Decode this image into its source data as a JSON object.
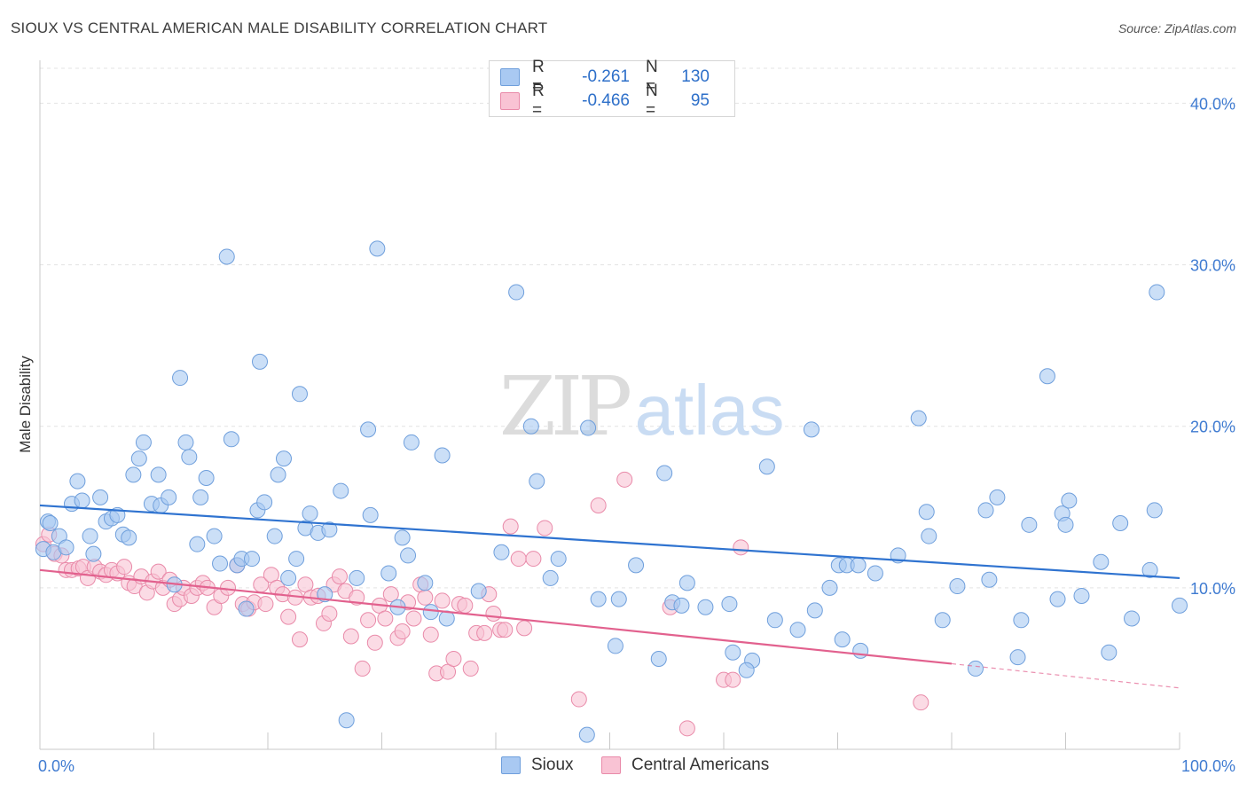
{
  "header": {
    "title": "SIOUX VS CENTRAL AMERICAN MALE DISABILITY CORRELATION CHART",
    "source": "Source: ZipAtlas.com"
  },
  "watermark": {
    "zip": "ZIP",
    "atlas": "atlas"
  },
  "legend": {
    "rows": [
      {
        "r_label": "R =",
        "r_value": "-0.261",
        "n_label": "N =",
        "n_value": "130",
        "color": "#a9c9f2",
        "border": "#6f9fdc"
      },
      {
        "r_label": "R =",
        "r_value": "-0.466",
        "n_label": "N =",
        "n_value": "95",
        "color": "#f9c3d4",
        "border": "#e98aa9"
      }
    ]
  },
  "bottom_legend": {
    "sioux": "Sioux",
    "central": "Central Americans"
  },
  "chart_data": {
    "type": "scatter",
    "title": "SIOUX VS CENTRAL AMERICAN MALE DISABILITY CORRELATION CHART",
    "xlabel": "",
    "ylabel": "Male Disability",
    "xlim": [
      0,
      100
    ],
    "ylim": [
      0,
      42
    ],
    "x_tick_labels": [
      "0.0%",
      "100.0%"
    ],
    "y_ticks": [
      10,
      20,
      30,
      40
    ],
    "y_tick_labels": [
      "10.0%",
      "20.0%",
      "30.0%",
      "40.0%"
    ],
    "grid": true,
    "series": [
      {
        "name": "Sioux",
        "color": "#a9c9f2",
        "stroke": "#6f9fdc",
        "trend": {
          "x": [
            0,
            100
          ],
          "y": [
            15.1,
            10.6
          ],
          "color": "#2f73d0"
        },
        "points": [
          [
            0.3,
            12.4
          ],
          [
            0.7,
            14.1
          ],
          [
            1.2,
            12.2
          ],
          [
            1.7,
            13.2
          ],
          [
            2.3,
            12.5
          ],
          [
            0.9,
            14.0
          ],
          [
            2.8,
            15.2
          ],
          [
            3.3,
            16.6
          ],
          [
            3.7,
            15.4
          ],
          [
            4.4,
            13.2
          ],
          [
            4.7,
            12.1
          ],
          [
            5.3,
            15.6
          ],
          [
            5.8,
            14.1
          ],
          [
            6.3,
            14.3
          ],
          [
            6.8,
            14.5
          ],
          [
            7.3,
            13.3
          ],
          [
            7.8,
            13.1
          ],
          [
            8.2,
            17.0
          ],
          [
            8.7,
            18.0
          ],
          [
            9.1,
            19.0
          ],
          [
            9.8,
            15.2
          ],
          [
            10.4,
            17.0
          ],
          [
            10.6,
            15.1
          ],
          [
            11.3,
            15.6
          ],
          [
            11.8,
            10.2
          ],
          [
            12.3,
            23.0
          ],
          [
            12.8,
            19.0
          ],
          [
            13.1,
            18.1
          ],
          [
            13.8,
            12.7
          ],
          [
            14.1,
            15.6
          ],
          [
            14.6,
            16.8
          ],
          [
            15.3,
            13.2
          ],
          [
            15.8,
            11.5
          ],
          [
            16.4,
            30.5
          ],
          [
            16.8,
            19.2
          ],
          [
            17.3,
            11.4
          ],
          [
            17.7,
            11.8
          ],
          [
            18.1,
            8.7
          ],
          [
            18.6,
            11.8
          ],
          [
            19.1,
            14.8
          ],
          [
            19.3,
            24.0
          ],
          [
            19.7,
            15.3
          ],
          [
            20.6,
            13.2
          ],
          [
            20.9,
            17.0
          ],
          [
            21.4,
            18.0
          ],
          [
            21.8,
            10.6
          ],
          [
            22.5,
            11.8
          ],
          [
            22.8,
            22.0
          ],
          [
            23.3,
            13.7
          ],
          [
            23.7,
            14.6
          ],
          [
            24.4,
            13.4
          ],
          [
            25.0,
            9.6
          ],
          [
            25.4,
            13.6
          ],
          [
            26.4,
            16.0
          ],
          [
            26.9,
            1.8
          ],
          [
            27.8,
            10.6
          ],
          [
            29.0,
            14.5
          ],
          [
            29.6,
            31.0
          ],
          [
            28.8,
            19.8
          ],
          [
            30.6,
            10.9
          ],
          [
            31.4,
            8.8
          ],
          [
            31.8,
            13.1
          ],
          [
            32.3,
            12.0
          ],
          [
            32.6,
            19.0
          ],
          [
            33.8,
            10.3
          ],
          [
            34.3,
            8.5
          ],
          [
            35.3,
            18.2
          ],
          [
            35.7,
            8.1
          ],
          [
            38.5,
            9.8
          ],
          [
            40.5,
            12.2
          ],
          [
            41.8,
            28.3
          ],
          [
            43.1,
            20.0
          ],
          [
            43.6,
            16.6
          ],
          [
            44.8,
            10.6
          ],
          [
            45.5,
            11.8
          ],
          [
            48.0,
            0.9
          ],
          [
            48.1,
            19.9
          ],
          [
            49.0,
            9.3
          ],
          [
            50.5,
            6.4
          ],
          [
            50.8,
            9.3
          ],
          [
            52.3,
            11.4
          ],
          [
            54.3,
            5.6
          ],
          [
            54.8,
            17.1
          ],
          [
            55.5,
            9.1
          ],
          [
            56.3,
            8.9
          ],
          [
            56.8,
            10.3
          ],
          [
            58.4,
            8.8
          ],
          [
            60.5,
            9.0
          ],
          [
            60.8,
            6.0
          ],
          [
            62.5,
            5.5
          ],
          [
            62.0,
            4.9
          ],
          [
            63.8,
            17.5
          ],
          [
            64.5,
            8.0
          ],
          [
            66.5,
            7.4
          ],
          [
            67.7,
            19.8
          ],
          [
            68.0,
            8.6
          ],
          [
            69.3,
            10.0
          ],
          [
            70.1,
            11.4
          ],
          [
            70.4,
            6.8
          ],
          [
            70.8,
            11.4
          ],
          [
            71.8,
            11.4
          ],
          [
            72.0,
            6.1
          ],
          [
            73.3,
            10.9
          ],
          [
            75.3,
            12.0
          ],
          [
            77.1,
            20.5
          ],
          [
            77.8,
            14.7
          ],
          [
            78.0,
            13.2
          ],
          [
            79.2,
            8.0
          ],
          [
            80.5,
            10.1
          ],
          [
            82.1,
            5.0
          ],
          [
            83.0,
            14.8
          ],
          [
            83.3,
            10.5
          ],
          [
            84.0,
            15.6
          ],
          [
            85.8,
            5.7
          ],
          [
            86.1,
            8.0
          ],
          [
            86.8,
            13.9
          ],
          [
            88.4,
            23.1
          ],
          [
            89.3,
            9.3
          ],
          [
            89.7,
            14.6
          ],
          [
            90.0,
            13.9
          ],
          [
            90.3,
            15.4
          ],
          [
            91.4,
            9.5
          ],
          [
            93.1,
            11.6
          ],
          [
            93.8,
            6.0
          ],
          [
            94.8,
            14.0
          ],
          [
            95.8,
            8.1
          ],
          [
            97.4,
            11.1
          ],
          [
            97.8,
            14.8
          ],
          [
            98.0,
            28.3
          ],
          [
            100.0,
            8.9
          ]
        ]
      },
      {
        "name": "Central Americans",
        "color": "#f9c3d4",
        "stroke": "#e98aa9",
        "trend": {
          "x": [
            0,
            80
          ],
          "y": [
            11.1,
            5.3
          ],
          "color": "#e2618e",
          "dashed_extension": {
            "x": [
              80,
              100
            ],
            "y": [
              5.3,
              3.8
            ]
          }
        },
        "points": [
          [
            0.3,
            12.7
          ],
          [
            0.8,
            13.3
          ],
          [
            1.3,
            12.1
          ],
          [
            1.9,
            12.0
          ],
          [
            2.3,
            11.1
          ],
          [
            2.8,
            11.1
          ],
          [
            3.4,
            11.2
          ],
          [
            3.8,
            11.3
          ],
          [
            4.2,
            10.6
          ],
          [
            4.8,
            11.3
          ],
          [
            5.3,
            11.0
          ],
          [
            5.8,
            10.8
          ],
          [
            6.3,
            11.1
          ],
          [
            6.8,
            10.9
          ],
          [
            7.4,
            11.3
          ],
          [
            7.8,
            10.3
          ],
          [
            8.3,
            10.1
          ],
          [
            8.9,
            10.7
          ],
          [
            9.4,
            9.7
          ],
          [
            9.9,
            10.4
          ],
          [
            10.4,
            11.0
          ],
          [
            10.8,
            10.0
          ],
          [
            11.4,
            10.5
          ],
          [
            11.8,
            9.0
          ],
          [
            12.3,
            9.3
          ],
          [
            12.6,
            10.0
          ],
          [
            13.3,
            9.5
          ],
          [
            13.8,
            10.0
          ],
          [
            14.3,
            10.3
          ],
          [
            14.7,
            10.0
          ],
          [
            15.3,
            8.8
          ],
          [
            15.9,
            9.5
          ],
          [
            16.5,
            10.0
          ],
          [
            17.3,
            11.4
          ],
          [
            17.8,
            9.0
          ],
          [
            18.3,
            8.7
          ],
          [
            18.8,
            9.1
          ],
          [
            19.4,
            10.2
          ],
          [
            19.8,
            9.0
          ],
          [
            20.3,
            10.8
          ],
          [
            20.8,
            10.0
          ],
          [
            21.3,
            9.6
          ],
          [
            21.8,
            8.2
          ],
          [
            22.4,
            9.4
          ],
          [
            22.8,
            6.8
          ],
          [
            23.3,
            10.2
          ],
          [
            23.8,
            9.4
          ],
          [
            24.4,
            9.5
          ],
          [
            24.9,
            7.8
          ],
          [
            25.4,
            8.4
          ],
          [
            25.8,
            10.2
          ],
          [
            26.3,
            10.7
          ],
          [
            26.8,
            9.8
          ],
          [
            27.3,
            7.0
          ],
          [
            27.8,
            9.4
          ],
          [
            28.3,
            5.0
          ],
          [
            28.8,
            8.0
          ],
          [
            29.4,
            6.6
          ],
          [
            29.8,
            8.9
          ],
          [
            30.3,
            8.1
          ],
          [
            30.8,
            9.6
          ],
          [
            31.4,
            6.9
          ],
          [
            31.8,
            7.3
          ],
          [
            32.3,
            9.1
          ],
          [
            32.8,
            8.1
          ],
          [
            33.4,
            10.2
          ],
          [
            33.8,
            9.4
          ],
          [
            34.3,
            7.1
          ],
          [
            34.8,
            4.7
          ],
          [
            35.3,
            9.2
          ],
          [
            35.8,
            4.8
          ],
          [
            36.3,
            5.6
          ],
          [
            36.8,
            9.0
          ],
          [
            37.3,
            8.9
          ],
          [
            37.8,
            5.0
          ],
          [
            38.3,
            7.2
          ],
          [
            39.0,
            7.2
          ],
          [
            39.4,
            9.6
          ],
          [
            39.8,
            8.4
          ],
          [
            40.4,
            7.4
          ],
          [
            40.8,
            7.4
          ],
          [
            41.3,
            13.8
          ],
          [
            42.0,
            11.8
          ],
          [
            42.5,
            7.5
          ],
          [
            43.3,
            11.8
          ],
          [
            44.3,
            13.7
          ],
          [
            47.3,
            3.1
          ],
          [
            49.0,
            15.1
          ],
          [
            51.3,
            16.7
          ],
          [
            55.3,
            8.8
          ],
          [
            56.8,
            1.3
          ],
          [
            60.0,
            4.3
          ],
          [
            60.8,
            4.3
          ],
          [
            61.5,
            12.5
          ],
          [
            77.3,
            2.9
          ]
        ]
      }
    ]
  }
}
